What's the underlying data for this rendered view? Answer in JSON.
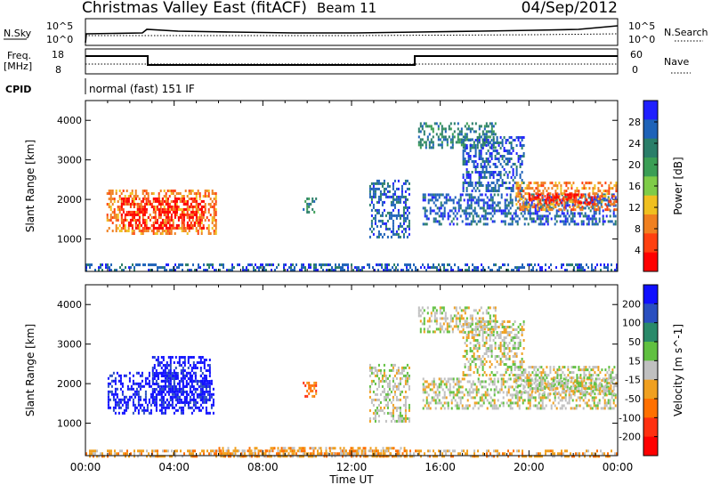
{
  "header": {
    "station": "Christmas Valley East (fitACF)",
    "beam": "Beam 11",
    "date": "04/Sep/2012"
  },
  "nsky_panel": {
    "left_label": "N.Sky",
    "right_label": "N.Search",
    "left_ticks": [
      "10^5",
      "10^0"
    ],
    "right_ticks": [
      "10^5",
      "10^0"
    ]
  },
  "freq_panel": {
    "label_line1": "Freq.",
    "label_line2": "[MHz]",
    "right_label": "Nave",
    "left_ticks": [
      "18",
      "8"
    ],
    "right_ticks": [
      "60",
      "0"
    ]
  },
  "cpid": {
    "label": "CPID",
    "value": "normal (fast) 151 IF"
  },
  "chart_data": [
    {
      "type": "heatmap",
      "name": "power",
      "ylabel": "Slant Range [km]",
      "yticks": [
        1000,
        2000,
        3000,
        4000
      ],
      "ylim": [
        180,
        4500
      ],
      "xlim": [
        0,
        24
      ],
      "colorbar_label": "Power [dB]",
      "colorbar_ticks": [
        "28",
        "24",
        "20",
        "16",
        "12",
        "8",
        "4"
      ],
      "colors": [
        "#1f1fff",
        "#1e62b8",
        "#2a7e69",
        "#3b9e55",
        "#7fcc48",
        "#f0c020",
        "#f08020",
        "#ff4010",
        "#ff0000"
      ],
      "regions": [
        {
          "t0": 0.95,
          "t1": 5.85,
          "r0": 1150,
          "r1": 2250,
          "level": 6
        },
        {
          "t0": 1.6,
          "t1": 5.3,
          "r0": 1250,
          "r1": 2050,
          "level": 8
        },
        {
          "t0": 9.8,
          "t1": 10.4,
          "r0": 1650,
          "r1": 2050,
          "level": 2
        },
        {
          "t0": 12.8,
          "t1": 14.6,
          "r0": 1050,
          "r1": 2500,
          "level": 1
        },
        {
          "t0": 15.0,
          "t1": 18.5,
          "r0": 3300,
          "r1": 3950,
          "level": 2
        },
        {
          "t0": 17.0,
          "t1": 19.8,
          "r0": 2200,
          "r1": 3600,
          "level": 1
        },
        {
          "t0": 15.2,
          "t1": 23.9,
          "r0": 1400,
          "r1": 2150,
          "level": 1
        },
        {
          "t0": 19.4,
          "t1": 23.9,
          "r0": 1750,
          "r1": 2450,
          "level": 6
        },
        {
          "t0": 20.0,
          "t1": 23.0,
          "r0": 1900,
          "r1": 2150,
          "level": 8
        },
        {
          "t0": 0.0,
          "t1": 24.0,
          "r0": 180,
          "r1": 380,
          "level": 1
        }
      ]
    },
    {
      "type": "heatmap",
      "name": "velocity",
      "ylabel": "Slant Range [km]",
      "yticks": [
        1000,
        2000,
        3000,
        4000
      ],
      "ylim": [
        180,
        4500
      ],
      "xlim": [
        0,
        24
      ],
      "xticks": [
        "00:00",
        "04:00",
        "08:00",
        "12:00",
        "16:00",
        "20:00",
        "00:00"
      ],
      "xlabel": "Time UT",
      "colorbar_label": "Velocity [m s^-1]",
      "colorbar_ticks": [
        "200",
        "100",
        "50",
        "15",
        "-15",
        "-50",
        "-100",
        "-200"
      ],
      "colors": [
        "#1010ff",
        "#2a4fc0",
        "#2a8a6a",
        "#60c040",
        "#c0c0c0",
        "#f0a020",
        "#ff7000",
        "#ff3010",
        "#ff0000"
      ],
      "regions": [
        {
          "t0": 1.0,
          "t1": 5.8,
          "r0": 1250,
          "r1": 2300,
          "level": 0
        },
        {
          "t0": 3.0,
          "t1": 5.6,
          "r0": 1550,
          "r1": 2700,
          "level": 0
        },
        {
          "t0": 9.8,
          "t1": 10.4,
          "r0": 1650,
          "r1": 2050,
          "level": 6
        },
        {
          "t0": 12.8,
          "t1": 14.6,
          "r0": 1050,
          "r1": 2500,
          "level": 4
        },
        {
          "t0": 15.0,
          "t1": 18.5,
          "r0": 3300,
          "r1": 3950,
          "level": 4
        },
        {
          "t0": 17.0,
          "t1": 19.8,
          "r0": 2200,
          "r1": 3600,
          "level": 4
        },
        {
          "t0": 15.2,
          "t1": 23.9,
          "r0": 1400,
          "r1": 2150,
          "level": 4
        },
        {
          "t0": 19.4,
          "t1": 23.9,
          "r0": 1750,
          "r1": 2450,
          "level": 4
        },
        {
          "t0": 6.0,
          "t1": 14.5,
          "r0": 180,
          "r1": 400,
          "level": 5
        },
        {
          "t0": 0.0,
          "t1": 24.0,
          "r0": 180,
          "r1": 330,
          "level": 5
        }
      ]
    }
  ]
}
